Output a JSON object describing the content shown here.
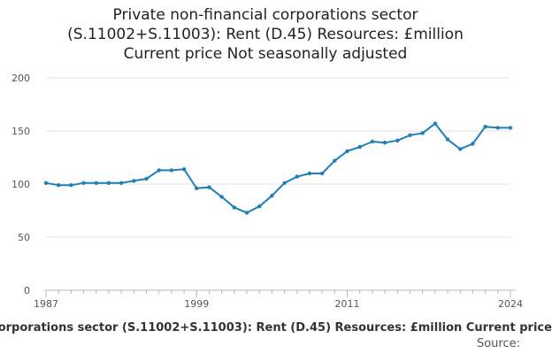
{
  "title": {
    "lines": [
      "Private non-financial corporations sector",
      "(S.11002+S.11003): Rent (D.45) Resources: £million",
      "Current price Not seasonally adjusted"
    ]
  },
  "footer": {
    "caption": "corporations sector (S.11002+S.11003): Rent (D.45) Resources: £million Current price",
    "source": "Source:"
  },
  "colors": {
    "line": "#1f7fb8",
    "grid": "#e3e3e3",
    "axis": "#b8b8b8"
  },
  "chart_data": {
    "type": "line",
    "title": "Private non-financial corporations sector (S.11002+S.11003): Rent (D.45) Resources: £million Current price Not seasonally adjusted",
    "xlabel": "",
    "ylabel": "",
    "xlim": [
      1987,
      2024
    ],
    "ylim": [
      0,
      200
    ],
    "grid": true,
    "x_ticks": [
      1987,
      1999,
      2011,
      2024
    ],
    "y_ticks": [
      0,
      50,
      100,
      150,
      200
    ],
    "series": [
      {
        "name": "Rent (D.45) Resources",
        "x": [
          1987,
          1988,
          1989,
          1990,
          1991,
          1992,
          1993,
          1994,
          1995,
          1996,
          1997,
          1998,
          1999,
          2000,
          2001,
          2002,
          2003,
          2004,
          2005,
          2006,
          2007,
          2008,
          2009,
          2010,
          2011,
          2012,
          2013,
          2014,
          2015,
          2016,
          2017,
          2018,
          2019,
          2020,
          2021,
          2022,
          2023,
          2024
        ],
        "values": [
          101,
          99,
          99,
          101,
          101,
          101,
          101,
          103,
          105,
          113,
          113,
          114,
          96,
          97,
          88,
          78,
          73,
          79,
          89,
          101,
          107,
          110,
          110,
          122,
          131,
          135,
          140,
          139,
          141,
          146,
          148,
          157,
          142,
          133,
          138,
          154,
          153,
          153
        ]
      }
    ]
  }
}
